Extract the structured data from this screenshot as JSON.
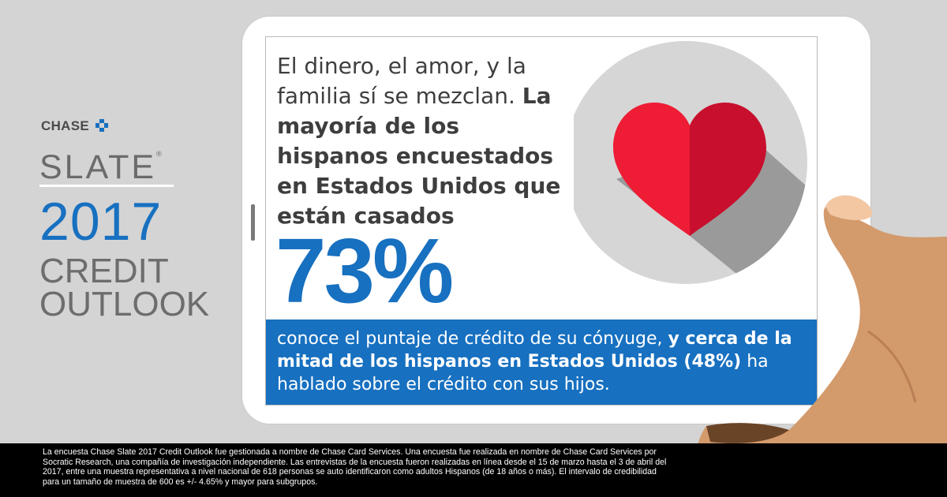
{
  "brand": {
    "chase": "CHASE",
    "slate": "SLATE",
    "registered": "®",
    "year": "2017",
    "line1": "CREDIT",
    "line2": "OUTLOOK"
  },
  "headline": {
    "plain": "El dinero, el amor, y la familia sí se mezclan.",
    "bold": "La mayoría de los hispanos encuestados en Estados Unidos que están casados"
  },
  "stat": {
    "value": "73%"
  },
  "band": {
    "plain1": "conoce el puntaje de crédito de su cónyuge,",
    "bold": "y cerca de la mitad de los hispanos en Estados Unidos (48%)",
    "plain2": "ha hablado sobre el crédito con sus hijos."
  },
  "footer": {
    "text": "La encuesta Chase Slate 2017 Credit Outlook fue gestionada a nombre de Chase Card Services. Una encuesta  fue realizada en nombre de Chase Card Services por Socratic Research, una compañía de investigación independiente. Las entrevistas de la encuesta fueron realizadas en línea desde el 15 de marzo hasta el 3 de abril del 2017, entre una muestra representativa a nivel nacional de 618 personas se auto identificaron como adultos Hispanos (de 18 años o más). El intervalo de credibilidad para un tamaño de muestra de 600 es +/- 4.65% y mayor para subgrupos."
  },
  "icons": {
    "logo": "chase-octagon-icon",
    "illustration": "heart-icon",
    "hand": "hand-illustration"
  },
  "colors": {
    "accent": "#1770c0",
    "background": "#d4d4d4",
    "heart_left": "#ee1c35",
    "heart_right": "#c8102e",
    "circle": "#d6d6d6",
    "skin": "#d39a6c"
  }
}
